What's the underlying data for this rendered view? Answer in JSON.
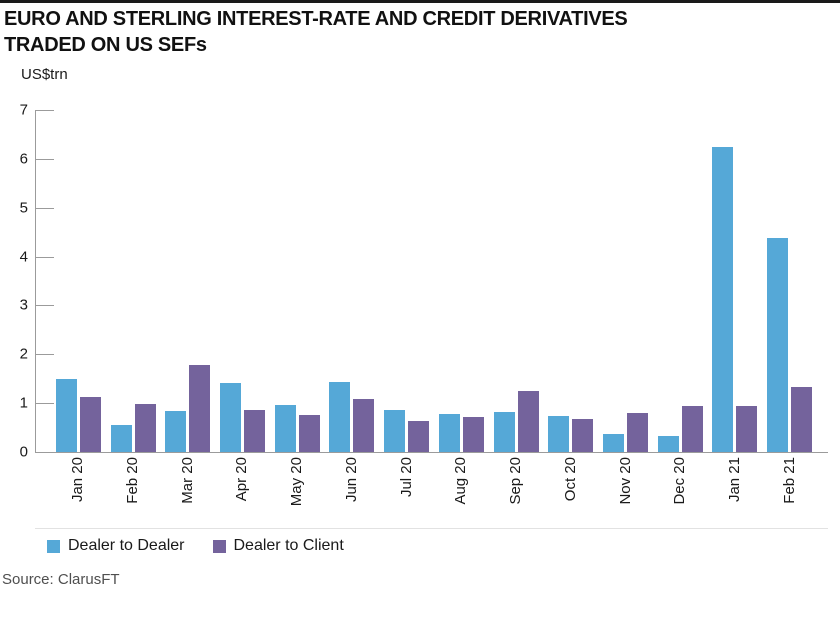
{
  "header": {
    "title_line1": "EURO AND STERLING INTEREST-RATE AND CREDIT DERIVATIVES",
    "title_line2": "TRADED ON US SEFs",
    "unit_label": "US$trn"
  },
  "chart_data": {
    "type": "bar",
    "title": "EURO AND STERLING INTEREST-RATE AND CREDIT DERIVATIVES TRADED ON US SEFs",
    "ylabel": "US$trn",
    "xlabel": "",
    "ylim": [
      0,
      7
    ],
    "yticks": [
      0,
      1,
      2,
      3,
      4,
      5,
      6,
      7
    ],
    "grid": false,
    "legend_position": "bottom",
    "categories": [
      "Jan 20",
      "Feb 20",
      "Mar 20",
      "Apr 20",
      "May 20",
      "Jun 20",
      "Jul 20",
      "Aug 20",
      "Sep 20",
      "Oct 20",
      "Nov 20",
      "Dec 20",
      "Jan 21",
      "Feb 21"
    ],
    "series": [
      {
        "name": "Dealer to Dealer",
        "color": "#55a8d7",
        "values": [
          1.5,
          0.55,
          0.83,
          1.41,
          0.97,
          1.43,
          0.85,
          0.77,
          0.81,
          0.73,
          0.37,
          0.32,
          6.25,
          4.38
        ]
      },
      {
        "name": "Dealer to Client",
        "color": "#74639c",
        "values": [
          1.13,
          0.98,
          1.78,
          0.87,
          0.76,
          1.09,
          0.64,
          0.72,
          1.25,
          0.67,
          0.79,
          0.95,
          0.94,
          1.33
        ]
      }
    ]
  },
  "footer": {
    "source": "Source: ClarusFT"
  },
  "style": {
    "axis_color": "#9b9b9b",
    "text_color": "#1a1a1a",
    "source_color": "#4f4f4f",
    "top_rule_color": "#1a1a1a"
  }
}
